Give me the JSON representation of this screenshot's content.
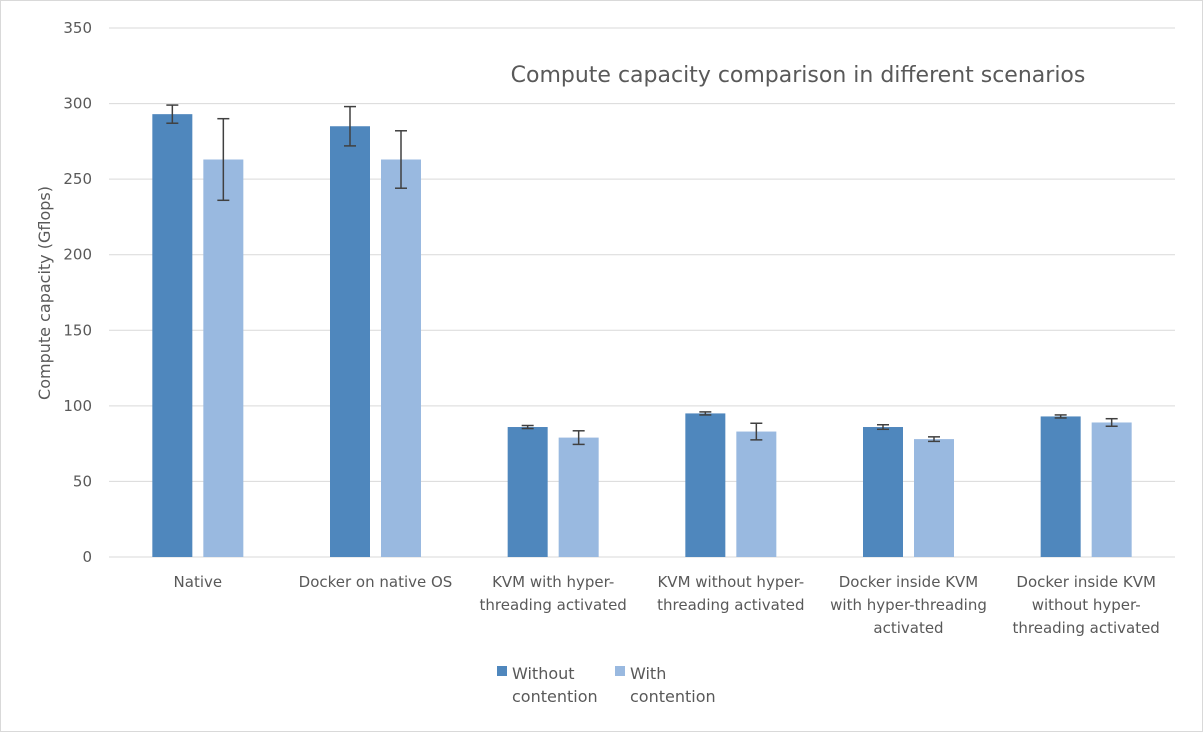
{
  "chart_data": {
    "type": "bar",
    "title": "Compute capacity comparison in different scenarios",
    "xlabel": "",
    "ylabel": "Compute capacity (Gflops)",
    "ylim": [
      0,
      350
    ],
    "yticks": [
      "0",
      "50",
      "100",
      "150",
      "200",
      "250",
      "300",
      "350"
    ],
    "ytick_values": [
      0,
      50,
      100,
      150,
      200,
      250,
      300,
      350
    ],
    "grid": true,
    "legend_position": "bottom",
    "categories": [
      [
        "Native"
      ],
      [
        "Docker on native OS"
      ],
      [
        "KVM with hyper-",
        "threading activated"
      ],
      [
        "KVM without hyper-",
        "threading activated"
      ],
      [
        "Docker inside KVM",
        "with hyper-threading",
        "activated"
      ],
      [
        "Docker inside KVM",
        "without hyper-",
        "threading activated"
      ]
    ],
    "series": [
      {
        "name": [
          "Without",
          "contention"
        ],
        "color": "#4f87bd",
        "values": [
          293,
          285,
          86,
          95,
          86,
          93
        ],
        "error": [
          6,
          13,
          1,
          1,
          1.5,
          1
        ]
      },
      {
        "name": [
          "With",
          "contention"
        ],
        "color": "#99b9e0",
        "values": [
          263,
          263,
          79,
          83,
          78,
          89
        ],
        "error": [
          27,
          19,
          4.5,
          5.5,
          1.5,
          2.5
        ]
      }
    ]
  }
}
